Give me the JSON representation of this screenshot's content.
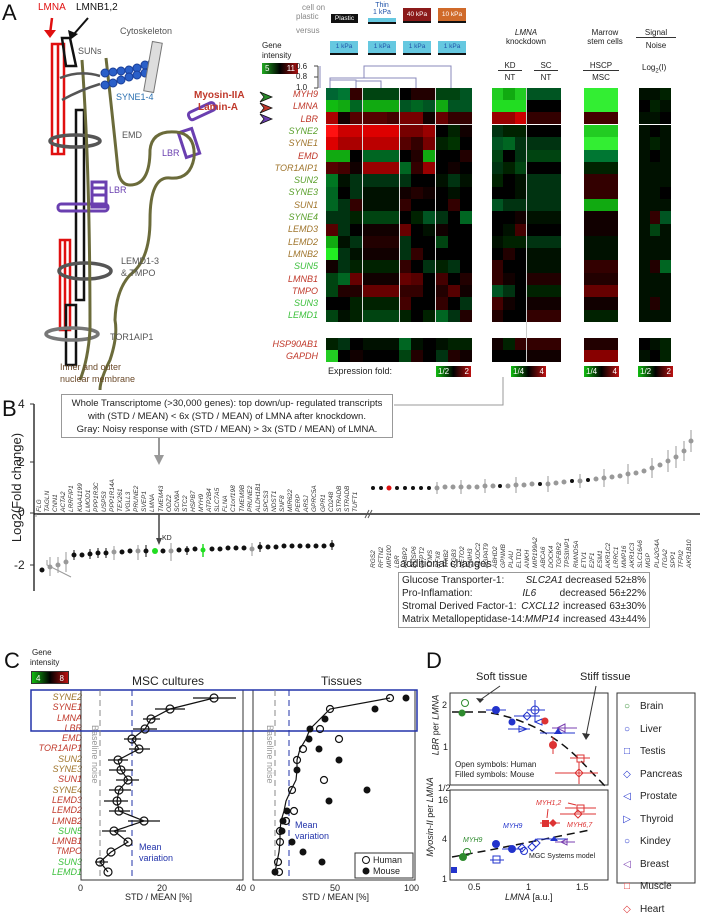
{
  "panelA": {
    "letter": "A",
    "diagram": {
      "labels": {
        "lmna": "LMNA",
        "lmnb": "LMNB1,2",
        "cytoskeleton": "Cytoskeleton",
        "suns": "SUNs",
        "syne": "SYNE1-4",
        "emd": "EMD",
        "lbr1": "LBR",
        "lbr2": "LBR",
        "lemd": "LEMD1-3",
        "tmpo": "& TMPO",
        "tor1aip1": "TOR1AIP1",
        "membrane1": "Inner and outer",
        "membrane2": "nuclear membrane"
      },
      "protein_labels": {
        "myosin": "Myosin-IIA",
        "lamin": "Lamin-A"
      }
    },
    "conditions": {
      "cell_on_plastic": "cell on",
      "plastic_word": "plastic",
      "versus": "versus",
      "top": [
        "Plastic",
        "Thin\n1 kPa",
        "40 kPa",
        "10 kPa"
      ],
      "thin_top": "Thin",
      "thin_bottom": "1 kPa",
      "bottom": [
        "1 kPa",
        "1 kPa",
        "1 kPa",
        "1 kPa"
      ]
    },
    "gene_intensity": {
      "title1": "Gene",
      "title2": "intensity",
      "low": "5",
      "high": "11"
    },
    "dendrogram_ticks": [
      "0.6",
      "0.8",
      "1.0"
    ],
    "knockdown": {
      "title_italic": "LMNA",
      "title": "knockdown",
      "kd_num": "KD",
      "kd_den": "NT",
      "sc_num": "SC",
      "sc_den": "NT"
    },
    "marrow": {
      "title1": "Marrow",
      "title2": "stem cells",
      "num": "HSCP",
      "den": "MSC"
    },
    "signal": {
      "num": "Signal",
      "den": "Noise",
      "log": "Log",
      "log_sub": "2",
      "log_arg": "(I)"
    },
    "genes_top": [
      {
        "name": "MYH9",
        "color": "#c0392b"
      },
      {
        "name": "LMNA",
        "color": "#c0392b"
      },
      {
        "name": "LBR",
        "color": "#c0392b"
      }
    ],
    "genes_main": [
      {
        "name": "SYNE2",
        "color": "#5aa02c"
      },
      {
        "name": "SYNE1",
        "color": "#a0752c"
      },
      {
        "name": "EMD",
        "color": "#c0392b"
      },
      {
        "name": "TOR1AIP1",
        "color": "#a0752c"
      },
      {
        "name": "SUN2",
        "color": "#5aa02c"
      },
      {
        "name": "SYNE3",
        "color": "#5aa02c"
      },
      {
        "name": "SUN1",
        "color": "#a0752c"
      },
      {
        "name": "SYNE4",
        "color": "#5aa02c"
      },
      {
        "name": "LEMD3",
        "color": "#a0752c"
      },
      {
        "name": "LEMD2",
        "color": "#a0752c"
      },
      {
        "name": "LMNB2",
        "color": "#a0752c"
      },
      {
        "name": "SUN5",
        "color": "#3cc03c"
      },
      {
        "name": "LMNB1",
        "color": "#c0392b"
      },
      {
        "name": "TMPO",
        "color": "#c0392b"
      },
      {
        "name": "SUN3",
        "color": "#3cc03c"
      },
      {
        "name": "LEMD1",
        "color": "#3cc03c"
      }
    ],
    "genes_ctrl": [
      {
        "name": "HSP90AB1",
        "color": "#c0392b"
      },
      {
        "name": "GAPDH",
        "color": "#c0392b"
      }
    ],
    "expression_fold": {
      "label": "Expression fold:",
      "scales": [
        {
          "low": "1/2",
          "high": "2"
        },
        {
          "low": "1/4",
          "high": "4"
        },
        {
          "low": "1/4",
          "high": "4"
        },
        {
          "low": "1/2",
          "high": "2"
        }
      ]
    },
    "colors": {
      "green": "#22dd22",
      "red": "#e01010",
      "black": "#000000"
    }
  },
  "panelB": {
    "letter": "B",
    "ylabel": "Log2(Fold change)",
    "yticks": [
      "4",
      "2",
      "0",
      "-2"
    ],
    "annotation": [
      "Whole Transcriptome (>30,000 genes): top down/up- regulated transcripts",
      "with (STD / MEAN) < 6x (STD / MEAN) of LMNA after knockdown.",
      "Gray: Noisy response with (STD / MEAN) > 3x (STD / MEAN) of LMNA."
    ],
    "kd_label": "KD",
    "down_genes": [
      "FLG",
      "TAGLN",
      "CNN1",
      "ACTA2",
      "LRRFIP1",
      "KIAA1199",
      "LMOD1",
      "PPP1R3C",
      "USP53",
      "PPP1R14A",
      "TEX261",
      "VGLL3",
      "PRUNE2",
      "SVEP1",
      "LMNA",
      "TMEM43",
      "ODZ2",
      "SCN9A",
      "STC2",
      "HSPB7",
      "MYH9",
      "ATP2B4",
      "SLC7A5",
      "FLNA",
      "C1orf198",
      "TMEM9B",
      "PRUNE2",
      "ALDH1B1",
      "SPCS3",
      "NDST1",
      "SNF8",
      "MIR622",
      "PERP",
      "ARSJ",
      "GPRC5A",
      "GPR1",
      "CD248",
      "STRADB",
      "STRADB",
      "TUFT1"
    ],
    "up_genes": [
      "RGS2",
      "RFTN2",
      "MIR100",
      "LBR",
      "N4BP2",
      "DUSP6",
      "GFPT2",
      "TYMS",
      "RFX8",
      "TRIB2",
      "ITGB3",
      "NETO2",
      "CNIH3",
      "PLXDC2",
      "AGPAT9",
      "ABHD2",
      "GPNMB",
      "PLAU",
      "ELTD1",
      "ANKH",
      "MIR199A2",
      "ABCA6",
      "DOCK4",
      "TGFBR2",
      "TP53INP1",
      "RMND5A",
      "ETV1",
      "E2F1",
      "ESM1",
      "AKR1C2",
      "LRRC1",
      "MMP16",
      "AKR1C3",
      "SLC16A6",
      "MGP",
      "PLA2G4A",
      "ITGA2",
      "SPP1",
      "TFPI2",
      "AKR1B10"
    ],
    "additional": {
      "title": "additional changes",
      "rows": [
        {
          "category": "Glucose Transporter-1:",
          "gene": "SLC2A1",
          "direction": "decreased",
          "value": "52±8%"
        },
        {
          "category": "Pro-Inflamation:",
          "gene": "IL6",
          "direction": "decreased",
          "value": "56±22%"
        },
        {
          "category": "Stromal Derived Factor-1:",
          "gene": "CXCL12",
          "direction": "increased",
          "value": "63±30%"
        },
        {
          "category": "Matrix Metallopeptidase-14:",
          "gene": "MMP14",
          "direction": "increased",
          "value": "43±44%"
        }
      ]
    }
  },
  "panelC": {
    "letter": "C",
    "gene_intensity": {
      "title1": "Gene",
      "title2": "intensity",
      "low": "4",
      "high": "8"
    },
    "left_title": "MSC cultures",
    "right_title": "Tissues",
    "xlabel": "STD / MEAN [%]",
    "left_xticks": [
      "0",
      "20",
      "40"
    ],
    "right_xticks": [
      "0",
      "50",
      "100"
    ],
    "baseline": "Baseline noise",
    "mean1": "Mean",
    "mean2": "variation",
    "legend": {
      "human": "Human",
      "mouse": "Mouse"
    },
    "genes": [
      {
        "name": "SYNE2",
        "color": "#a0752c"
      },
      {
        "name": "SYNE1",
        "color": "#c0392b"
      },
      {
        "name": "LMNA",
        "color": "#c0392b"
      },
      {
        "name": "LBR",
        "color": "#c0392b"
      },
      {
        "name": "EMD",
        "color": "#c0392b"
      },
      {
        "name": "TOR1AIP1",
        "color": "#c0392b"
      },
      {
        "name": "SUN2",
        "color": "#a0752c"
      },
      {
        "name": "SYNE3",
        "color": "#a0752c"
      },
      {
        "name": "SUN1",
        "color": "#c0392b"
      },
      {
        "name": "SYNE4",
        "color": "#a0752c"
      },
      {
        "name": "LEMD3",
        "color": "#c0392b"
      },
      {
        "name": "LEMD2",
        "color": "#c0392b"
      },
      {
        "name": "LMNB2",
        "color": "#c0392b"
      },
      {
        "name": "SUN5",
        "color": "#3cc03c"
      },
      {
        "name": "LMNB1",
        "color": "#c0392b"
      },
      {
        "name": "TMPO",
        "color": "#c0392b"
      },
      {
        "name": "SUN3",
        "color": "#3cc03c"
      },
      {
        "name": "LEMD1",
        "color": "#3cc03c"
      }
    ]
  },
  "panelD": {
    "letter": "D",
    "soft": "Soft tissue",
    "stiff": "Stiff tissue",
    "top_ylabel_italic": "LBR",
    "top_ylabel": " per ",
    "top_ylabel2": "LMNA",
    "bottom_ylabel_italic": "Myosin-II",
    "bottom_ylabel": " per ",
    "bottom_ylabel2": "LMNA",
    "top_yticks": [
      "2",
      "1",
      "1/2"
    ],
    "bottom_yticks": [
      "16",
      "4",
      "1"
    ],
    "xticks": [
      "0.5",
      "1",
      "1.5"
    ],
    "xlabel_italic": "LMNA",
    "xlabel": " [a.u.]",
    "note1": "Open symbols: Human",
    "note2": "Filled symbols: Mouse",
    "myh9_a": "MYH9",
    "myh9_b": "MYH9",
    "myh12": "MYH1,2",
    "myh67": "MYH6,7",
    "model": "MGC Systems model",
    "legend": [
      {
        "name": "Brain",
        "symbol": "○",
        "color": "#2e8b2e"
      },
      {
        "name": "Liver",
        "symbol": "○",
        "color": "#2233cc"
      },
      {
        "name": "Testis",
        "symbol": "□",
        "color": "#2233cc"
      },
      {
        "name": "Pancreas",
        "symbol": "◇",
        "color": "#2233cc"
      },
      {
        "name": "Prostate",
        "symbol": "◁",
        "color": "#2233cc"
      },
      {
        "name": "Thyroid",
        "symbol": "▷",
        "color": "#2233cc"
      },
      {
        "name": "Kindey",
        "symbol": "○",
        "color": "#2233cc"
      },
      {
        "name": "Breast",
        "symbol": "◁",
        "color": "#7a3fb0"
      },
      {
        "name": "Muscle",
        "symbol": "□",
        "color": "#dd3333"
      },
      {
        "name": "Heart",
        "symbol": "◇",
        "color": "#dd3333"
      }
    ]
  },
  "chart_data": [
    {
      "type": "scatter",
      "title": "B: Log2 fold change after LMNA knockdown",
      "ylabel": "Log2(Fold change)",
      "ylim": [
        -3,
        4
      ],
      "series": [
        {
          "name": "down-regulated",
          "values": [
            -2.2,
            -2.1,
            -2.0,
            -1.9,
            -1.7,
            -1.7,
            -1.65,
            -1.65,
            -1.6,
            -1.6,
            -1.55,
            -1.55,
            -1.5,
            -1.5,
            -1.5,
            -1.5,
            -1.5,
            -1.45,
            -1.45,
            -1.45,
            -1.45,
            -1.4,
            -1.4,
            -1.4,
            -1.4,
            -1.4,
            -1.35,
            -1.35,
            -1.35,
            -1.3,
            -1.3,
            -1.3,
            -1.3,
            -1.3,
            -1.25,
            -1.25,
            -1.25,
            -1.25,
            -1.2,
            -1.2
          ]
        },
        {
          "name": "up-regulated",
          "values": [
            1.0,
            1.0,
            1.0,
            1.0,
            1.05,
            1.05,
            1.05,
            1.05,
            1.1,
            1.1,
            1.1,
            1.1,
            1.15,
            1.15,
            1.15,
            1.15,
            1.2,
            1.2,
            1.2,
            1.25,
            1.25,
            1.25,
            1.3,
            1.3,
            1.3,
            1.35,
            1.35,
            1.4,
            1.4,
            1.45,
            1.45,
            1.5,
            1.5,
            1.6,
            1.7,
            1.8,
            1.9,
            2.1,
            2.3,
            2.8
          ]
        }
      ]
    },
    {
      "type": "scatter",
      "title": "C: MSC cultures",
      "xlabel": "STD / MEAN [%]",
      "xlim": [
        0,
        40
      ],
      "categories": [
        "SYNE2",
        "SYNE1",
        "LMNA",
        "LBR",
        "EMD",
        "TOR1AIP1",
        "SUN2",
        "SYNE3",
        "SUN1",
        "SYNE4",
        "LEMD3",
        "LEMD2",
        "LMNB2",
        "SUN5",
        "LMNB1",
        "TMPO",
        "SUN3",
        "LEMD1"
      ],
      "values": [
        33,
        22,
        17.5,
        16,
        13,
        14.5,
        9.5,
        10,
        11.5,
        9.5,
        9,
        9.5,
        16,
        8,
        12,
        7.5,
        5,
        7
      ]
    },
    {
      "type": "scatter",
      "title": "C: Tissues",
      "xlabel": "STD / MEAN [%]",
      "xlim": [
        0,
        100
      ],
      "categories": [
        "SYNE2",
        "SYNE1",
        "LMNA",
        "LBR",
        "EMD",
        "TOR1AIP1",
        "SUN2",
        "SYNE3",
        "SUN1",
        "SYNE4",
        "LEMD3",
        "LEMD2",
        "LMNB2",
        "SUN5",
        "LMNB1",
        "TMPO",
        "SUN3",
        "LEMD1"
      ],
      "series": [
        {
          "name": "Human",
          "values": [
            78,
            40,
            36,
            34,
            46,
            23,
            19,
            20,
            37,
            18,
            15,
            17,
            12,
            9,
            9,
            9,
            7,
            9
          ]
        },
        {
          "name": "Mouse",
          "values": [
            88,
            74,
            37,
            28,
            27,
            33,
            45,
            20,
            65,
            39,
            13,
            12,
            11,
            16,
            24,
            35,
            6,
            6
          ]
        }
      ]
    },
    {
      "type": "scatter",
      "title": "D: LBR per LMNA and Myosin-II per LMNA vs LMNA",
      "xlabel": "LMNA [a.u.]",
      "xlim": [
        0.3,
        1.75
      ],
      "series": [
        {
          "name": "LBR per LMNA",
          "x": [
            0.35,
            0.4,
            0.68,
            0.7,
            0.83,
            0.88,
            0.93,
            0.98,
            1.03,
            1.05,
            1.13,
            1.22,
            1.22,
            1.3,
            1.42,
            1.45
          ],
          "y": [
            1.8,
            2.05,
            1.9,
            1.85,
            1.55,
            1.45,
            1.7,
            1.7,
            1.95,
            1.7,
            1.6,
            1.15,
            1.4,
            1.6,
            0.8,
            1.0
          ]
        },
        {
          "name": "Myosin-II per LMNA",
          "x": [
            0.3,
            0.35,
            0.4,
            0.67,
            0.68,
            0.83,
            0.9,
            0.95,
            1.0,
            1.05,
            1.13,
            1.22,
            1.22,
            1.3,
            1.42,
            1.45
          ],
          "y": [
            1.4,
            2.0,
            2.4,
            1.7,
            3.0,
            2.6,
            2.7,
            2.5,
            2.9,
            3.1,
            7.5,
            7.5,
            4.2,
            3.8,
            10,
            14
          ]
        }
      ]
    }
  ]
}
